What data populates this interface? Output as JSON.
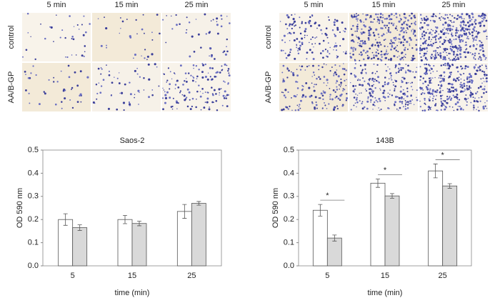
{
  "panels": [
    {
      "columns": [
        "5 min",
        "15 min",
        "25 min"
      ],
      "rows": [
        "control",
        "AA/B-GP"
      ]
    },
    {
      "columns": [
        "5 min",
        "15 min",
        "25 min"
      ],
      "rows": [
        "control",
        "AA/B-GP"
      ]
    }
  ],
  "chart_data": [
    {
      "type": "bar",
      "title": "Saos-2",
      "x_label": "time (min)",
      "y_label": "OD 590 nm",
      "categories": [
        "5",
        "15",
        "25"
      ],
      "series": [
        {
          "color": "#ffffff",
          "values": [
            0.2,
            0.2,
            0.235
          ],
          "errors": [
            0.025,
            0.018,
            0.03
          ]
        },
        {
          "color": "#d9d9d9",
          "values": [
            0.165,
            0.183,
            0.27
          ],
          "errors": [
            0.012,
            0.01,
            0.008
          ]
        }
      ],
      "ylim": [
        0,
        0.5
      ],
      "yticks": [
        {
          "value": 0,
          "label": "0.0"
        },
        0.1,
        0.2,
        0.3,
        0.4,
        0.5
      ]
    },
    {
      "type": "bar",
      "title": "143B",
      "x_label": "time (min)",
      "y_label": "OD 590 nm",
      "categories": [
        "5",
        "15",
        "25"
      ],
      "series": [
        {
          "color": "#ffffff",
          "values": [
            0.24,
            0.357,
            0.41
          ],
          "errors": [
            0.025,
            0.018,
            0.03
          ]
        },
        {
          "color": "#d9d9d9",
          "values": [
            0.12,
            0.302,
            0.345
          ],
          "errors": [
            0.013,
            0.01,
            0.01
          ]
        }
      ],
      "annotations": [
        "*",
        "*",
        "*"
      ],
      "ylim": [
        0,
        0.5
      ],
      "yticks": [
        {
          "value": 0,
          "label": "0.0"
        },
        0.1,
        0.2,
        0.3,
        0.4,
        0.5
      ]
    }
  ]
}
